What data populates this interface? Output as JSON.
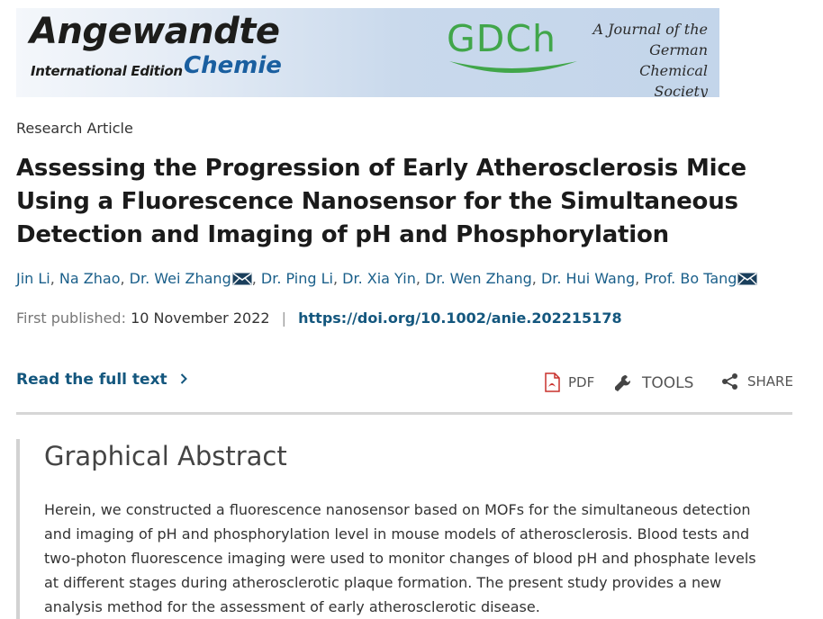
{
  "banner": {
    "journal_name": "Angewandte",
    "edition": "International Edition",
    "chemie": "Chemie",
    "society_logo": "GDCh",
    "tagline_line1": "A Journal of the",
    "tagline_line2": "German",
    "tagline_line3": "Chemical Society"
  },
  "article": {
    "type": "Research Article",
    "title": "Assessing the Progression of Early Atherosclerosis Mice Using a Fluorescence Nanosensor for the Simultaneous Detection and Imaging of pH and Phosphorylation",
    "authors": [
      {
        "name": "Jin Li",
        "email": false
      },
      {
        "name": "Na Zhao",
        "email": false
      },
      {
        "name": "Dr. Wei Zhang",
        "email": true
      },
      {
        "name": "Dr. Ping Li",
        "email": false
      },
      {
        "name": "Dr. Xia Yin",
        "email": false
      },
      {
        "name": "Dr. Wen Zhang",
        "email": false
      },
      {
        "name": "Dr. Hui Wang",
        "email": false
      },
      {
        "name": "Prof. Bo Tang",
        "email": true
      }
    ],
    "first_published_label": "First published:",
    "first_published_date": "10 November 2022",
    "separator": "|",
    "doi": "https://doi.org/10.1002/anie.202215178"
  },
  "actions": {
    "read_full_text": "Read the full text",
    "pdf": "PDF",
    "tools": "TOOLS",
    "share": "SHARE"
  },
  "abstract": {
    "heading": "Graphical Abstract",
    "text": "Herein, we constructed a fluorescence nanosensor based on MOFs for the simultaneous detection and imaging of pH and phosphorylation level in mouse models of atherosclerosis. Blood tests and two-photon fluorescence imaging were used to monitor changes of blood pH and phosphate levels at different stages during atherosclerotic plaque formation. The present study provides a new analysis method for the assessment of early atherosclerotic disease."
  },
  "icons": {
    "email": "envelope-icon",
    "read_more": "chevron-right-icon",
    "pdf": "pdf-icon",
    "tools": "wrench-icon",
    "share": "share-icon"
  },
  "colors": {
    "link": "#1a5f8a",
    "doi": "#14577e",
    "gdch_green": "#41a64a",
    "chemie_blue": "#1a5fa0"
  }
}
